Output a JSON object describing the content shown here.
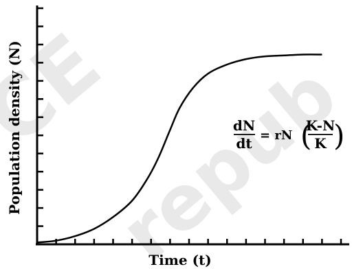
{
  "chart_data": {
    "type": "line",
    "xlabel": "Time (t)",
    "ylabel": "Population density (N)",
    "x_ticks": 16,
    "y_ticks": 13,
    "xlim": [
      0,
      16
    ],
    "ylim": [
      0,
      13
    ],
    "series": [
      {
        "values": [
          {
            "x": 0.0,
            "y": 0.1
          },
          {
            "x": 1.0,
            "y": 0.2
          },
          {
            "x": 2.0,
            "y": 0.45
          },
          {
            "x": 3.0,
            "y": 0.85
          },
          {
            "x": 4.0,
            "y": 1.5
          },
          {
            "x": 5.0,
            "y": 2.4
          },
          {
            "x": 5.8,
            "y": 3.6
          },
          {
            "x": 6.4,
            "y": 4.8
          },
          {
            "x": 7.0,
            "y": 6.3
          },
          {
            "x": 7.5,
            "y": 7.5
          },
          {
            "x": 8.2,
            "y": 8.6
          },
          {
            "x": 9.0,
            "y": 9.4
          },
          {
            "x": 10.0,
            "y": 9.9
          },
          {
            "x": 11.0,
            "y": 10.2
          },
          {
            "x": 12.0,
            "y": 10.35
          },
          {
            "x": 13.0,
            "y": 10.4
          },
          {
            "x": 14.0,
            "y": 10.45
          },
          {
            "x": 15.0,
            "y": 10.45
          }
        ]
      }
    ],
    "equation": {
      "lhs_num": "dN",
      "lhs_den": "dt",
      "rhs_prefix": "= rN",
      "rhs_num": "K-N",
      "rhs_den": "K"
    },
    "watermark": "NCERT be republished",
    "line_color": "#000000",
    "grid": false
  }
}
